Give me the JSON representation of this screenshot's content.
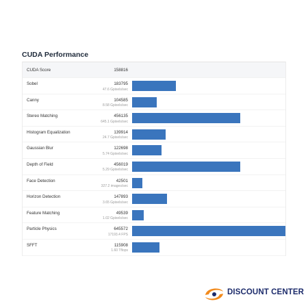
{
  "chart_data": {
    "type": "bar",
    "title": "CUDA Performance",
    "score": {
      "label": "CUDA Score",
      "value": "158816"
    },
    "max_value": 645572,
    "rows": [
      {
        "name": "Sobel",
        "value": 183795,
        "value_label": "183795",
        "sub": "47.6 Gpixels/sec"
      },
      {
        "name": "Canny",
        "value": 104585,
        "value_label": "104585",
        "sub": "8.58 Gpixels/sec"
      },
      {
        "name": "Stereo Matching",
        "value": 456135,
        "value_label": "456135",
        "sub": "645.1 Gpixels/sec"
      },
      {
        "name": "Histogram Equalization",
        "value": 139914,
        "value_label": "139914",
        "sub": "24.7 Gpixels/sec"
      },
      {
        "name": "Gaussian Blur",
        "value": 122698,
        "value_label": "122698",
        "sub": "5.74 Gpixels/sec"
      },
      {
        "name": "Depth of Field",
        "value": 456019,
        "value_label": "456019",
        "sub": "5.29 Gpixels/sec"
      },
      {
        "name": "Face Detection",
        "value": 42501,
        "value_label": "42501",
        "sub": "327.2 images/sec"
      },
      {
        "name": "Horizon Detection",
        "value": 147893,
        "value_label": "147893",
        "sub": "3.65 Gpixels/sec"
      },
      {
        "name": "Feature Matching",
        "value": 49539,
        "value_label": "49539",
        "sub": "1.02 Gpixels/sec"
      },
      {
        "name": "Particle Physics",
        "value": 645572,
        "value_label": "645572",
        "sub": "17193.4 FPS"
      },
      {
        "name": "SFFT",
        "value": 115908,
        "value_label": "115908",
        "sub": "1.60 Tflops"
      }
    ],
    "bar_color": "#3a75bd"
  },
  "logo": {
    "text": "DISCOUNT CENTER",
    "color": "#1c2b6b",
    "accent": "#f28a1c"
  }
}
